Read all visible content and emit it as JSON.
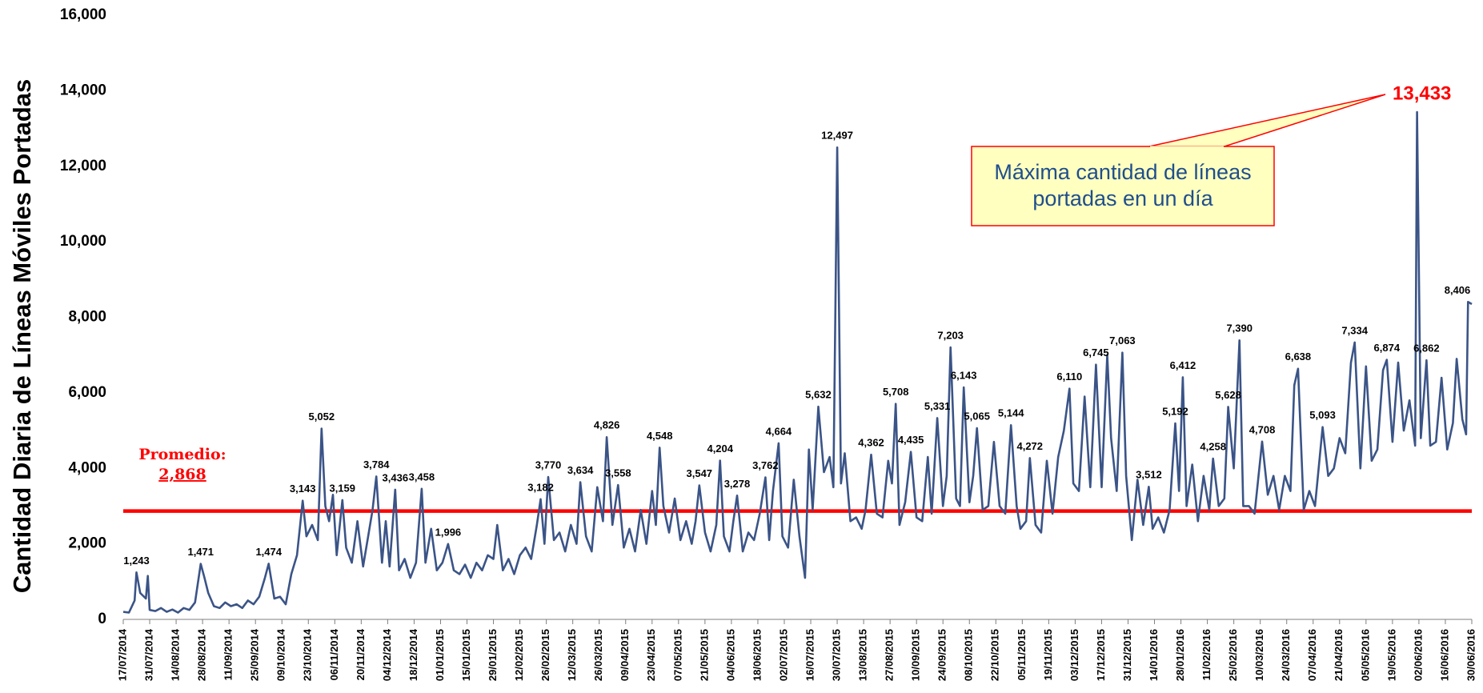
{
  "chart_data": {
    "type": "line",
    "y_label": "Cantidad Diaria de Líneas Móviles Portadas",
    "ylim": [
      0,
      16000
    ],
    "yticks": [
      0,
      {
        "value": 2000,
        "label": "2,000"
      },
      {
        "value": 4000,
        "label": "4,000"
      },
      {
        "value": 6000,
        "label": "6,000"
      },
      {
        "value": 8000,
        "label": "8,000"
      },
      {
        "value": 10000,
        "label": "10,000"
      },
      {
        "value": 12000,
        "label": "12,000"
      },
      {
        "value": 14000,
        "label": "14,000"
      },
      {
        "value": 16000,
        "label": "16,000"
      }
    ],
    "xlim": [
      "17/07/2014",
      "30/06/2016"
    ],
    "xticks": [
      "17/07/2014",
      "31/07/2014",
      "14/08/2014",
      "28/08/2014",
      "11/09/2014",
      "25/09/2014",
      "09/10/2014",
      "23/10/2014",
      "06/11/2014",
      "20/11/2014",
      "04/12/2014",
      "18/12/2014",
      "01/01/2015",
      "15/01/2015",
      "29/01/2015",
      "12/02/2015",
      "26/02/2015",
      "12/03/2015",
      "26/03/2015",
      "09/04/2015",
      "23/04/2015",
      "07/05/2015",
      "21/05/2015",
      "04/06/2015",
      "18/06/2015",
      "02/07/2015",
      "16/07/2015",
      "30/07/2015",
      "13/08/2015",
      "27/08/2015",
      "10/09/2015",
      "24/09/2015",
      "08/10/2015",
      "22/10/2015",
      "05/11/2015",
      "19/11/2015",
      "03/12/2015",
      "17/12/2015",
      "31/12/2015",
      "14/01/2016",
      "28/01/2016",
      "11/02/2016",
      "25/02/2016",
      "10/03/2016",
      "24/03/2016",
      "07/04/2016",
      "21/04/2016",
      "05/05/2016",
      "19/05/2016",
      "02/06/2016",
      "16/06/2016",
      "30/06/2016"
    ],
    "x": [
      "17/07/2014",
      "20/07/2014",
      "23/07/2014",
      "24/07/2014",
      "26/07/2014",
      "29/07/2014",
      "30/07/2014",
      "31/07/2014",
      "03/08/2014",
      "06/08/2014",
      "09/08/2014",
      "12/08/2014",
      "15/08/2014",
      "18/08/2014",
      "21/08/2014",
      "24/08/2014",
      "27/08/2014",
      "29/08/2014",
      "31/08/2014",
      "03/09/2014",
      "06/09/2014",
      "09/09/2014",
      "12/09/2014",
      "15/09/2014",
      "18/09/2014",
      "21/09/2014",
      "24/09/2014",
      "27/09/2014",
      "30/09/2014",
      "02/10/2014",
      "05/10/2014",
      "08/10/2014",
      "11/10/2014",
      "14/10/2014",
      "17/10/2014",
      "20/10/2014",
      "22/10/2014",
      "25/10/2014",
      "28/10/2014",
      "30/10/2014",
      "01/11/2014",
      "03/11/2014",
      "05/11/2014",
      "07/11/2014",
      "10/11/2014",
      "12/11/2014",
      "15/11/2014",
      "18/11/2014",
      "21/11/2014",
      "24/11/2014",
      "26/11/2014",
      "28/11/2014",
      "01/12/2014",
      "03/12/2014",
      "05/12/2014",
      "08/12/2014",
      "10/12/2014",
      "13/12/2014",
      "16/12/2014",
      "19/12/2014",
      "22/12/2014",
      "24/12/2014",
      "27/12/2014",
      "30/12/2014",
      "02/01/2015",
      "05/01/2015",
      "08/01/2015",
      "11/01/2015",
      "14/01/2015",
      "17/01/2015",
      "20/01/2015",
      "23/01/2015",
      "26/01/2015",
      "29/01/2015",
      "31/01/2015",
      "03/02/2015",
      "06/02/2015",
      "09/02/2015",
      "12/02/2015",
      "15/02/2015",
      "18/02/2015",
      "21/02/2015",
      "23/02/2015",
      "25/02/2015",
      "27/02/2015",
      "02/03/2015",
      "05/03/2015",
      "08/03/2015",
      "11/03/2015",
      "14/03/2015",
      "16/03/2015",
      "19/03/2015",
      "22/03/2015",
      "25/03/2015",
      "28/03/2015",
      "30/03/2015",
      "02/04/2015",
      "05/04/2015",
      "08/04/2015",
      "11/04/2015",
      "14/04/2015",
      "17/04/2015",
      "20/04/2015",
      "23/04/2015",
      "25/04/2015",
      "27/04/2015",
      "29/04/2015",
      "02/05/2015",
      "05/05/2015",
      "08/05/2015",
      "11/05/2015",
      "14/05/2015",
      "16/05/2015",
      "18/05/2015",
      "21/05/2015",
      "24/05/2015",
      "27/05/2015",
      "29/05/2015",
      "31/05/2015",
      "03/06/2015",
      "05/06/2015",
      "07/06/2015",
      "10/06/2015",
      "13/06/2015",
      "16/06/2015",
      "19/06/2015",
      "22/06/2015",
      "24/06/2015",
      "26/06/2015",
      "29/06/2015",
      "01/07/2015",
      "04/07/2015",
      "07/07/2015",
      "10/07/2015",
      "13/07/2015",
      "15/07/2015",
      "17/07/2015",
      "20/07/2015",
      "23/07/2015",
      "26/07/2015",
      "28/07/2015",
      "30/07/2015",
      "01/08/2015",
      "03/08/2015",
      "06/08/2015",
      "09/08/2015",
      "12/08/2015",
      "14/08/2015",
      "17/08/2015",
      "20/08/2015",
      "23/08/2015",
      "26/08/2015",
      "28/08/2015",
      "30/08/2015",
      "01/09/2015",
      "04/09/2015",
      "07/09/2015",
      "10/09/2015",
      "13/09/2015",
      "16/09/2015",
      "18/09/2015",
      "21/09/2015",
      "24/09/2015",
      "26/09/2015",
      "28/09/2015",
      "01/10/2015",
      "03/10/2015",
      "05/10/2015",
      "08/10/2015",
      "10/10/2015",
      "12/10/2015",
      "15/10/2015",
      "18/10/2015",
      "21/10/2015",
      "24/10/2015",
      "27/10/2015",
      "30/10/2015",
      "02/11/2015",
      "04/11/2015",
      "07/11/2015",
      "09/11/2015",
      "12/11/2015",
      "15/11/2015",
      "18/11/2015",
      "21/11/2015",
      "24/11/2015",
      "27/11/2015",
      "30/11/2015",
      "02/12/2015",
      "05/12/2015",
      "08/12/2015",
      "11/12/2015",
      "14/12/2015",
      "17/12/2015",
      "20/12/2015",
      "22/12/2015",
      "25/12/2015",
      "28/12/2015",
      "30/12/2015",
      "02/01/2016",
      "05/01/2016",
      "08/01/2016",
      "11/01/2016",
      "13/01/2016",
      "16/01/2016",
      "19/01/2016",
      "22/01/2016",
      "25/01/2016",
      "27/01/2016",
      "29/01/2016",
      "31/01/2016",
      "03/02/2016",
      "06/02/2016",
      "09/02/2016",
      "12/02/2016",
      "14/02/2016",
      "17/02/2016",
      "20/02/2016",
      "22/02/2016",
      "25/02/2016",
      "28/02/2016",
      "01/03/2016",
      "04/03/2016",
      "07/03/2016",
      "11/03/2016",
      "14/03/2016",
      "17/03/2016",
      "20/03/2016",
      "23/03/2016",
      "26/03/2016",
      "28/03/2016",
      "30/03/2016",
      "02/04/2016",
      "05/04/2016",
      "08/04/2016",
      "12/04/2016",
      "15/04/2016",
      "18/04/2016",
      "21/04/2016",
      "24/04/2016",
      "27/04/2016",
      "29/04/2016",
      "02/05/2016",
      "05/05/2016",
      "08/05/2016",
      "11/05/2016",
      "14/05/2016",
      "16/05/2016",
      "19/05/2016",
      "22/05/2016",
      "25/05/2016",
      "28/05/2016",
      "31/05/2016",
      "01/06/2016",
      "03/06/2016",
      "06/06/2016",
      "08/06/2016",
      "11/06/2016",
      "14/06/2016",
      "17/06/2016",
      "20/06/2016",
      "22/06/2016",
      "25/06/2016",
      "27/06/2016",
      "28/06/2016",
      "30/06/2016"
    ],
    "series": [
      {
        "color": "#3b5487",
        "values": [
          200,
          180,
          500,
          1243,
          700,
          550,
          1150,
          250,
          220,
          300,
          200,
          260,
          180,
          300,
          250,
          450,
          1471,
          1100,
          700,
          350,
          300,
          450,
          350,
          400,
          300,
          500,
          400,
          600,
          1100,
          1474,
          550,
          600,
          400,
          1200,
          1700,
          3143,
          2200,
          2500,
          2100,
          5052,
          3000,
          2600,
          3300,
          1700,
          3159,
          1900,
          1500,
          2600,
          1400,
          2300,
          2900,
          3784,
          1500,
          2600,
          1400,
          3436,
          1300,
          1600,
          1100,
          1500,
          3458,
          1500,
          2400,
          1300,
          1500,
          1996,
          1300,
          1200,
          1450,
          1100,
          1500,
          1300,
          1700,
          1600,
          2500,
          1300,
          1600,
          1200,
          1700,
          1900,
          1600,
          2500,
          3182,
          2000,
          3770,
          2100,
          2300,
          1800,
          2500,
          2000,
          3634,
          2200,
          1800,
          3500,
          2600,
          4826,
          2500,
          3558,
          1900,
          2400,
          1800,
          2900,
          2000,
          3400,
          2500,
          4548,
          3000,
          2300,
          3200,
          2100,
          2600,
          2000,
          2600,
          3547,
          2300,
          1800,
          2500,
          4204,
          2200,
          1800,
          2600,
          3278,
          1800,
          2300,
          2100,
          2800,
          3762,
          2100,
          3400,
          4664,
          2200,
          1900,
          3700,
          2200,
          1100,
          4500,
          2900,
          5632,
          3900,
          4300,
          3500,
          12497,
          3600,
          4400,
          2600,
          2700,
          2400,
          2900,
          4362,
          2800,
          2700,
          4200,
          3600,
          5708,
          2500,
          3100,
          4435,
          2700,
          2600,
          4300,
          2800,
          5331,
          3000,
          3800,
          7203,
          3200,
          3000,
          6143,
          3100,
          3800,
          5065,
          2900,
          3000,
          4700,
          3000,
          2800,
          5144,
          3000,
          2400,
          2600,
          4272,
          2500,
          2300,
          4200,
          2800,
          4300,
          5000,
          6110,
          3600,
          3400,
          5900,
          3500,
          6745,
          3500,
          7000,
          4800,
          3400,
          7063,
          3800,
          2100,
          3700,
          2500,
          3512,
          2400,
          2700,
          2300,
          2900,
          5192,
          3400,
          6412,
          3000,
          4100,
          2600,
          3800,
          2900,
          4258,
          3000,
          3200,
          5628,
          4000,
          7390,
          3000,
          3000,
          2800,
          4708,
          3300,
          3800,
          2900,
          3800,
          3400,
          6200,
          6638,
          2900,
          3400,
          3000,
          5093,
          3800,
          4000,
          4800,
          4400,
          6800,
          7334,
          4000,
          6700,
          4200,
          4500,
          6600,
          6874,
          4700,
          6800,
          5000,
          5800,
          4600,
          13433,
          4800,
          6862,
          4600,
          4700,
          6400,
          4500,
          5200,
          6900,
          5300,
          4900,
          8406,
          8350
        ],
        "value_labels": [
          null,
          null,
          null,
          "1,243",
          null,
          null,
          null,
          null,
          null,
          null,
          null,
          null,
          null,
          null,
          null,
          null,
          "1,471",
          null,
          null,
          null,
          null,
          null,
          null,
          null,
          null,
          null,
          null,
          null,
          null,
          "1,474",
          null,
          null,
          null,
          null,
          null,
          "3,143",
          null,
          null,
          null,
          "5,052",
          null,
          null,
          null,
          null,
          "3,159",
          null,
          null,
          null,
          null,
          null,
          null,
          "3,784",
          null,
          null,
          null,
          "3,436",
          null,
          null,
          null,
          null,
          "3,458",
          null,
          null,
          null,
          null,
          "1,996",
          null,
          null,
          null,
          null,
          null,
          null,
          null,
          null,
          null,
          null,
          null,
          null,
          null,
          null,
          null,
          null,
          "3,182",
          null,
          "3,770",
          null,
          null,
          null,
          null,
          null,
          "3,634",
          null,
          null,
          null,
          null,
          "4,826",
          null,
          "3,558",
          null,
          null,
          null,
          null,
          null,
          null,
          null,
          "4,548",
          null,
          null,
          null,
          null,
          null,
          null,
          null,
          "3,547",
          null,
          null,
          null,
          "4,204",
          null,
          null,
          null,
          "3,278",
          null,
          null,
          null,
          null,
          "3,762",
          null,
          null,
          "4,664",
          null,
          null,
          null,
          null,
          null,
          null,
          null,
          "5,632",
          null,
          null,
          null,
          "12,497",
          null,
          null,
          null,
          null,
          null,
          null,
          "4,362",
          null,
          null,
          null,
          null,
          "5,708",
          null,
          null,
          "4,435",
          null,
          null,
          null,
          null,
          "5,331",
          null,
          null,
          "7,203",
          null,
          null,
          "6,143",
          null,
          null,
          "5,065",
          null,
          null,
          null,
          null,
          null,
          "5,144",
          null,
          null,
          null,
          "4,272",
          null,
          null,
          null,
          null,
          null,
          null,
          "6,110",
          null,
          null,
          null,
          null,
          "6,745",
          null,
          null,
          null,
          null,
          "7,063",
          null,
          null,
          null,
          null,
          "3,512",
          null,
          null,
          null,
          null,
          "5,192",
          null,
          "6,412",
          null,
          null,
          null,
          null,
          null,
          "4,258",
          null,
          null,
          "5,628",
          null,
          "7,390",
          null,
          null,
          null,
          "4,708",
          null,
          null,
          null,
          null,
          null,
          null,
          "6,638",
          null,
          null,
          null,
          "5,093",
          null,
          null,
          null,
          null,
          null,
          "7,334",
          null,
          null,
          null,
          null,
          null,
          "6,874",
          null,
          null,
          null,
          null,
          null,
          "13,433",
          null,
          "6,862",
          null,
          null,
          null,
          null,
          null,
          null,
          null,
          null,
          "8,406",
          null
        ]
      }
    ],
    "average": {
      "label": "Promedio:",
      "value": 2868,
      "value_label": "2,868",
      "color": "#ff0000"
    },
    "annotation": {
      "text": [
        "Máxima cantidad de líneas",
        "portadas en un día"
      ],
      "color": "#ff0000"
    }
  }
}
